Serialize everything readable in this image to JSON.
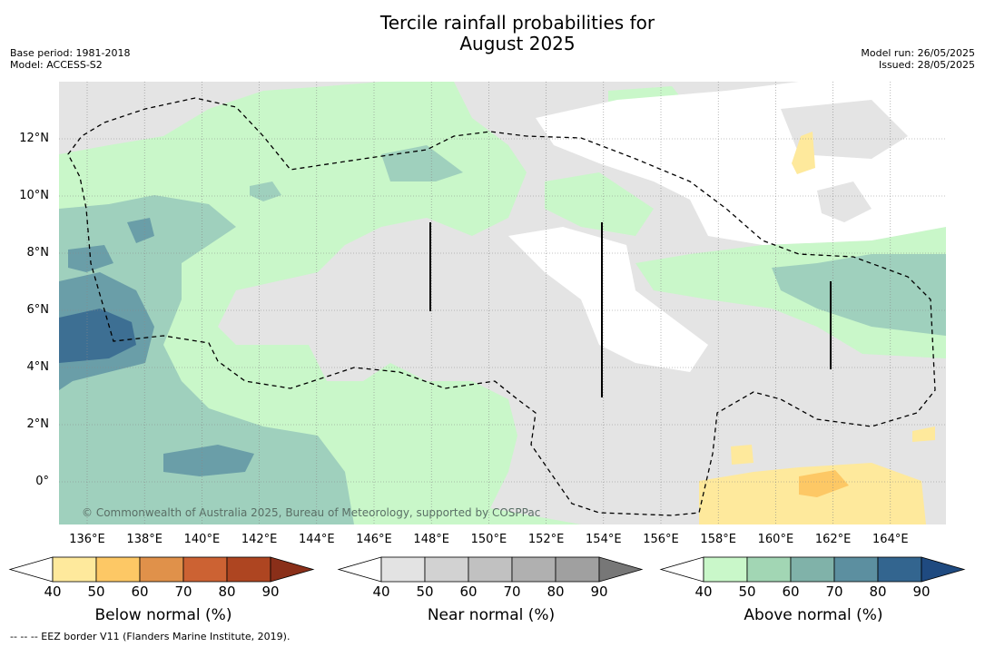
{
  "title": {
    "line1": "Tercile rainfall probabilities for",
    "line2": "August 2025"
  },
  "meta": {
    "base_period": "Base period: 1981-2018",
    "model": "Model: ACCESS-S2",
    "model_run": "Model run: 26/05/2025",
    "issued": "Issued: 28/05/2025"
  },
  "map": {
    "lat_labels": [
      "12°N",
      "10°N",
      "8°N",
      "6°N",
      "4°N",
      "2°N",
      "0°"
    ],
    "lon_labels": [
      "136°E",
      "138°E",
      "140°E",
      "142°E",
      "144°E",
      "146°E",
      "148°E",
      "150°E",
      "152°E",
      "154°E",
      "156°E",
      "158°E",
      "160°E",
      "162°E",
      "164°E"
    ],
    "copyright": "© Commonwealth of Australia 2025, Bureau of Meteorology, supported by COSPPac",
    "colors": {
      "near_normal_fill": "#e4e4e4",
      "above_50": "#c9f7c9",
      "above_60": "#9fd0bd",
      "above_70": "#6a9ea8",
      "above_80": "#3d6f93",
      "below_50": "#fee99c"
    }
  },
  "colorbars": {
    "ticks": [
      "40",
      "50",
      "60",
      "70",
      "80",
      "90"
    ],
    "below": {
      "label": "Below normal (%)",
      "colors": [
        "#ffffff",
        "#fee99c",
        "#fdc865",
        "#e0914a",
        "#cc6233",
        "#ae4521",
        "#8a2f19"
      ]
    },
    "near": {
      "label": "Near normal (%)",
      "colors": [
        "#ffffff",
        "#e3e3e3",
        "#d2d2d2",
        "#c1c1c1",
        "#b0b0b0",
        "#a0a0a0",
        "#777777"
      ]
    },
    "above": {
      "label": "Above normal (%)",
      "colors": [
        "#ffffff",
        "#c9f7c9",
        "#a2d6b4",
        "#80b2a9",
        "#5c8fa0",
        "#33658f",
        "#1f4a80"
      ]
    }
  },
  "footnote": "-- -- -- EEZ border V11 (Flanders Marine Institute, 2019)."
}
